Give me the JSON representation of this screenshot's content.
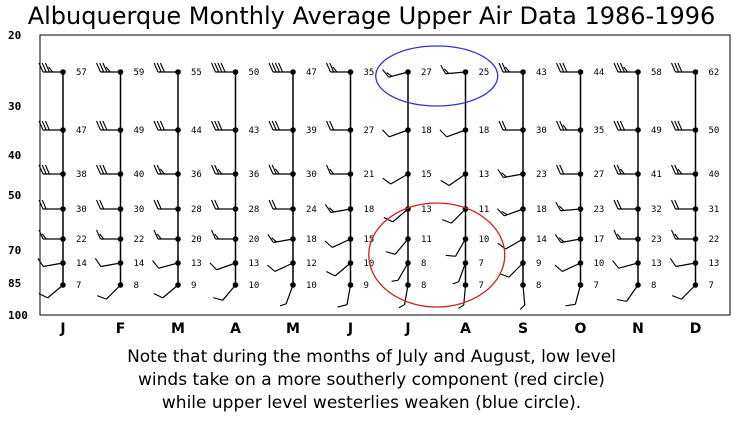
{
  "title": "Albuquerque Monthly Average Upper Air Data 1986-1996",
  "caption": [
    "Note that during the months of July and August, low level",
    "winds take on a more southerly component (red circle)",
    "while upper level westerlies weaken (blue circle)."
  ],
  "chart_data": {
    "type": "wind-barb-timeseries",
    "xlabel": "",
    "ylabel": "",
    "categories": [
      "J",
      "F",
      "M",
      "A",
      "M",
      "J",
      "J",
      "A",
      "S",
      "O",
      "N",
      "D"
    ],
    "y_axis_ticks": [
      "20",
      "30",
      "40",
      "50",
      "70",
      "85",
      "100"
    ],
    "y_axis_values": [
      20,
      30,
      40,
      50,
      70,
      85,
      100
    ],
    "grid": false,
    "legend": "none",
    "levels": [
      25,
      35,
      45,
      55,
      65,
      75,
      85
    ],
    "values_by_level": {
      "25": [
        57,
        59,
        55,
        50,
        47,
        35,
        27,
        25,
        43,
        44,
        58,
        62
      ],
      "35": [
        47,
        49,
        44,
        43,
        39,
        27,
        18,
        18,
        30,
        35,
        49,
        50
      ],
      "45": [
        38,
        40,
        36,
        36,
        30,
        21,
        15,
        13,
        23,
        27,
        41,
        40
      ],
      "55": [
        30,
        30,
        28,
        28,
        24,
        18,
        13,
        11,
        18,
        23,
        32,
        31
      ],
      "65": [
        22,
        22,
        20,
        20,
        18,
        15,
        11,
        10,
        14,
        17,
        23,
        22
      ],
      "75": [
        14,
        14,
        13,
        13,
        12,
        10,
        8,
        7,
        9,
        10,
        13,
        13
      ],
      "85": [
        7,
        8,
        9,
        10,
        10,
        9,
        8,
        7,
        8,
        7,
        8,
        7
      ]
    },
    "wind_dir_deg_by_level": {
      "25": [
        270,
        270,
        270,
        270,
        270,
        270,
        255,
        265,
        270,
        270,
        270,
        270
      ],
      "35": [
        270,
        270,
        270,
        270,
        270,
        270,
        250,
        250,
        270,
        270,
        270,
        270
      ],
      "45": [
        270,
        270,
        270,
        270,
        270,
        270,
        240,
        235,
        260,
        270,
        270,
        270
      ],
      "55": [
        270,
        270,
        270,
        270,
        270,
        260,
        230,
        225,
        250,
        265,
        270,
        270
      ],
      "65": [
        270,
        270,
        270,
        270,
        260,
        245,
        220,
        210,
        240,
        260,
        270,
        270
      ],
      "75": [
        260,
        260,
        255,
        250,
        245,
        230,
        210,
        200,
        225,
        245,
        255,
        260
      ],
      "85": [
        230,
        225,
        230,
        220,
        200,
        190,
        190,
        185,
        175,
        195,
        215,
        225
      ]
    },
    "wind_speed_kt_by_level": {
      "25": [
        35,
        35,
        30,
        40,
        40,
        25,
        15,
        15,
        25,
        30,
        35,
        30
      ],
      "35": [
        30,
        30,
        30,
        30,
        30,
        20,
        10,
        10,
        20,
        25,
        30,
        30
      ],
      "45": [
        30,
        30,
        25,
        25,
        25,
        15,
        10,
        10,
        15,
        20,
        25,
        25
      ],
      "55": [
        20,
        20,
        20,
        20,
        20,
        15,
        10,
        10,
        15,
        15,
        20,
        20
      ],
      "65": [
        15,
        15,
        15,
        15,
        15,
        10,
        10,
        10,
        10,
        15,
        15,
        15
      ],
      "75": [
        10,
        10,
        10,
        10,
        10,
        10,
        5,
        5,
        10,
        10,
        10,
        10
      ],
      "85": [
        10,
        10,
        10,
        10,
        5,
        10,
        5,
        5,
        5,
        10,
        10,
        10
      ]
    },
    "annotations": [
      {
        "shape": "ellipse",
        "color": "#3333cc",
        "months": [
          "J",
          "A"
        ],
        "levels": [
          25
        ],
        "meaning": "upper level westerlies weaken"
      },
      {
        "shape": "ellipse",
        "color": "#cc2222",
        "months": [
          "J",
          "A"
        ],
        "levels": [
          55,
          65,
          75,
          85
        ],
        "meaning": "low level winds more southerly"
      }
    ]
  }
}
